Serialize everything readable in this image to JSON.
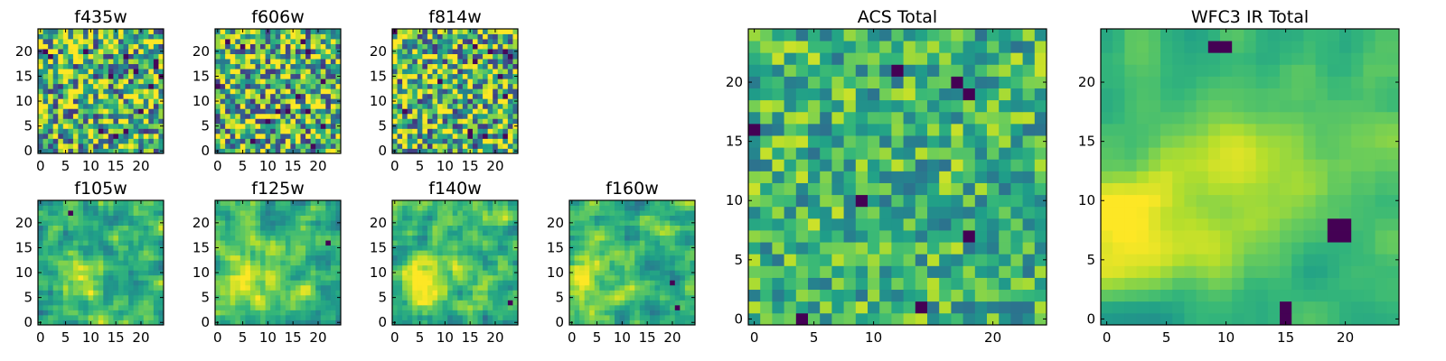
{
  "chart_data": [
    {
      "id": "f435w",
      "type": "heatmap",
      "title": "f435w",
      "grid": 25,
      "xticks": [
        "0",
        "5",
        "10",
        "15",
        "20"
      ],
      "yticks": [
        "0",
        "5",
        "10",
        "15",
        "20"
      ],
      "xlim": [
        -0.5,
        24.5
      ],
      "ylim": [
        -0.5,
        24.5
      ],
      "colormap": "viridis",
      "value_range": [
        0,
        1
      ],
      "seed": 11,
      "smooth": 0,
      "noise": 1.0,
      "blob": null,
      "dark_spots": [],
      "grid_on": false
    },
    {
      "id": "f606w",
      "type": "heatmap",
      "title": "f606w",
      "grid": 25,
      "xticks": [
        "0",
        "5",
        "10",
        "15",
        "20"
      ],
      "yticks": [
        "0",
        "5",
        "10",
        "15",
        "20"
      ],
      "xlim": [
        -0.5,
        24.5
      ],
      "ylim": [
        -0.5,
        24.5
      ],
      "colormap": "viridis",
      "value_range": [
        0,
        1
      ],
      "seed": 23,
      "smooth": 0,
      "noise": 1.0,
      "blob": null,
      "dark_spots": [],
      "grid_on": false
    },
    {
      "id": "f814w",
      "type": "heatmap",
      "title": "f814w",
      "grid": 25,
      "xticks": [
        "0",
        "5",
        "10",
        "15",
        "20"
      ],
      "yticks": [
        "0",
        "5",
        "10",
        "15",
        "20"
      ],
      "xlim": [
        -0.5,
        24.5
      ],
      "ylim": [
        -0.5,
        24.5
      ],
      "colormap": "viridis",
      "value_range": [
        0,
        1
      ],
      "seed": 37,
      "smooth": 0,
      "noise": 1.0,
      "blob": null,
      "dark_spots": [],
      "grid_on": false
    },
    {
      "id": "f105w",
      "type": "heatmap",
      "title": "f105w",
      "grid": 25,
      "xticks": [
        "0",
        "5",
        "10",
        "15",
        "20"
      ],
      "yticks": [
        "0",
        "5",
        "10",
        "15",
        "20"
      ],
      "xlim": [
        -0.5,
        24.5
      ],
      "ylim": [
        -0.5,
        24.5
      ],
      "colormap": "viridis",
      "value_range": [
        0,
        1
      ],
      "seed": 41,
      "smooth": 1,
      "noise": 0.6,
      "blob": [
        8,
        8,
        0.7
      ],
      "dark_spots": [
        [
          6,
          22
        ]
      ],
      "grid_on": false
    },
    {
      "id": "f125w",
      "type": "heatmap",
      "title": "f125w",
      "grid": 25,
      "xticks": [
        "0",
        "5",
        "10",
        "15",
        "20"
      ],
      "yticks": [
        "0",
        "5",
        "10",
        "15",
        "20"
      ],
      "xlim": [
        -0.5,
        24.5
      ],
      "ylim": [
        -0.5,
        24.5
      ],
      "colormap": "viridis",
      "value_range": [
        0,
        1
      ],
      "seed": 53,
      "smooth": 1,
      "noise": 0.6,
      "blob": [
        8,
        8,
        0.6
      ],
      "dark_spots": [
        [
          22,
          16
        ]
      ],
      "grid_on": false
    },
    {
      "id": "f140w",
      "type": "heatmap",
      "title": "f140w",
      "grid": 25,
      "xticks": [
        "0",
        "5",
        "10",
        "15",
        "20"
      ],
      "yticks": [
        "0",
        "5",
        "10",
        "15",
        "20"
      ],
      "xlim": [
        -0.5,
        24.5
      ],
      "ylim": [
        -0.5,
        24.5
      ],
      "colormap": "viridis",
      "value_range": [
        0,
        1
      ],
      "seed": 67,
      "smooth": 1,
      "noise": 0.6,
      "blob": [
        6,
        10,
        0.8
      ],
      "dark_spots": [
        [
          23,
          4
        ]
      ],
      "grid_on": false
    },
    {
      "id": "f160w",
      "type": "heatmap",
      "title": "f160w",
      "grid": 25,
      "xticks": [
        "0",
        "5",
        "10",
        "15",
        "20"
      ],
      "yticks": [
        "0",
        "5",
        "10",
        "15",
        "20"
      ],
      "xlim": [
        -0.5,
        24.5
      ],
      "ylim": [
        -0.5,
        24.5
      ],
      "colormap": "viridis",
      "value_range": [
        0,
        1
      ],
      "seed": 71,
      "smooth": 1,
      "noise": 0.55,
      "blob": [
        2,
        8,
        0.9
      ],
      "dark_spots": [
        [
          20,
          8
        ],
        [
          21,
          3
        ]
      ],
      "grid_on": false
    },
    {
      "id": "acs_total",
      "type": "heatmap",
      "title": "ACS Total",
      "grid": 25,
      "xticks": [
        "0",
        "5",
        "10",
        "20"
      ],
      "xtick_values": [
        0,
        5,
        10,
        20
      ],
      "yticks": [
        "0",
        "5",
        "10",
        "15",
        "20"
      ],
      "xlim": [
        -0.5,
        24.5
      ],
      "ylim": [
        -0.5,
        24.5
      ],
      "colormap": "viridis",
      "value_range": [
        0,
        1
      ],
      "seed": 83,
      "smooth": 0,
      "noise": 0.55,
      "blob": null,
      "dark_spots": [
        [
          4,
          0
        ],
        [
          9,
          10
        ],
        [
          14,
          1
        ],
        [
          18,
          7
        ],
        [
          12,
          21
        ],
        [
          17,
          20
        ],
        [
          18,
          19
        ],
        [
          0,
          16
        ]
      ],
      "grid_on": false
    },
    {
      "id": "wfc3_ir_total",
      "type": "heatmap",
      "title": "WFC3 IR Total",
      "grid": 25,
      "xticks": [
        "0",
        "5",
        "10",
        "15",
        "20"
      ],
      "yticks": [
        "0",
        "5",
        "10",
        "15",
        "20"
      ],
      "xlim": [
        -0.5,
        24.5
      ],
      "ylim": [
        -0.5,
        24.5
      ],
      "colormap": "viridis",
      "value_range": [
        0,
        1
      ],
      "seed": 97,
      "smooth": 2,
      "noise": 0.35,
      "blob": [
        2,
        8,
        1.0
      ],
      "blob2": [
        12,
        13,
        0.6
      ],
      "dark_spots": [
        [
          19,
          7
        ],
        [
          20,
          7
        ],
        [
          19,
          8
        ],
        [
          20,
          8
        ],
        [
          15,
          0
        ],
        [
          15,
          1
        ],
        [
          9,
          23
        ],
        [
          10,
          23
        ]
      ],
      "grid_on": false
    }
  ]
}
